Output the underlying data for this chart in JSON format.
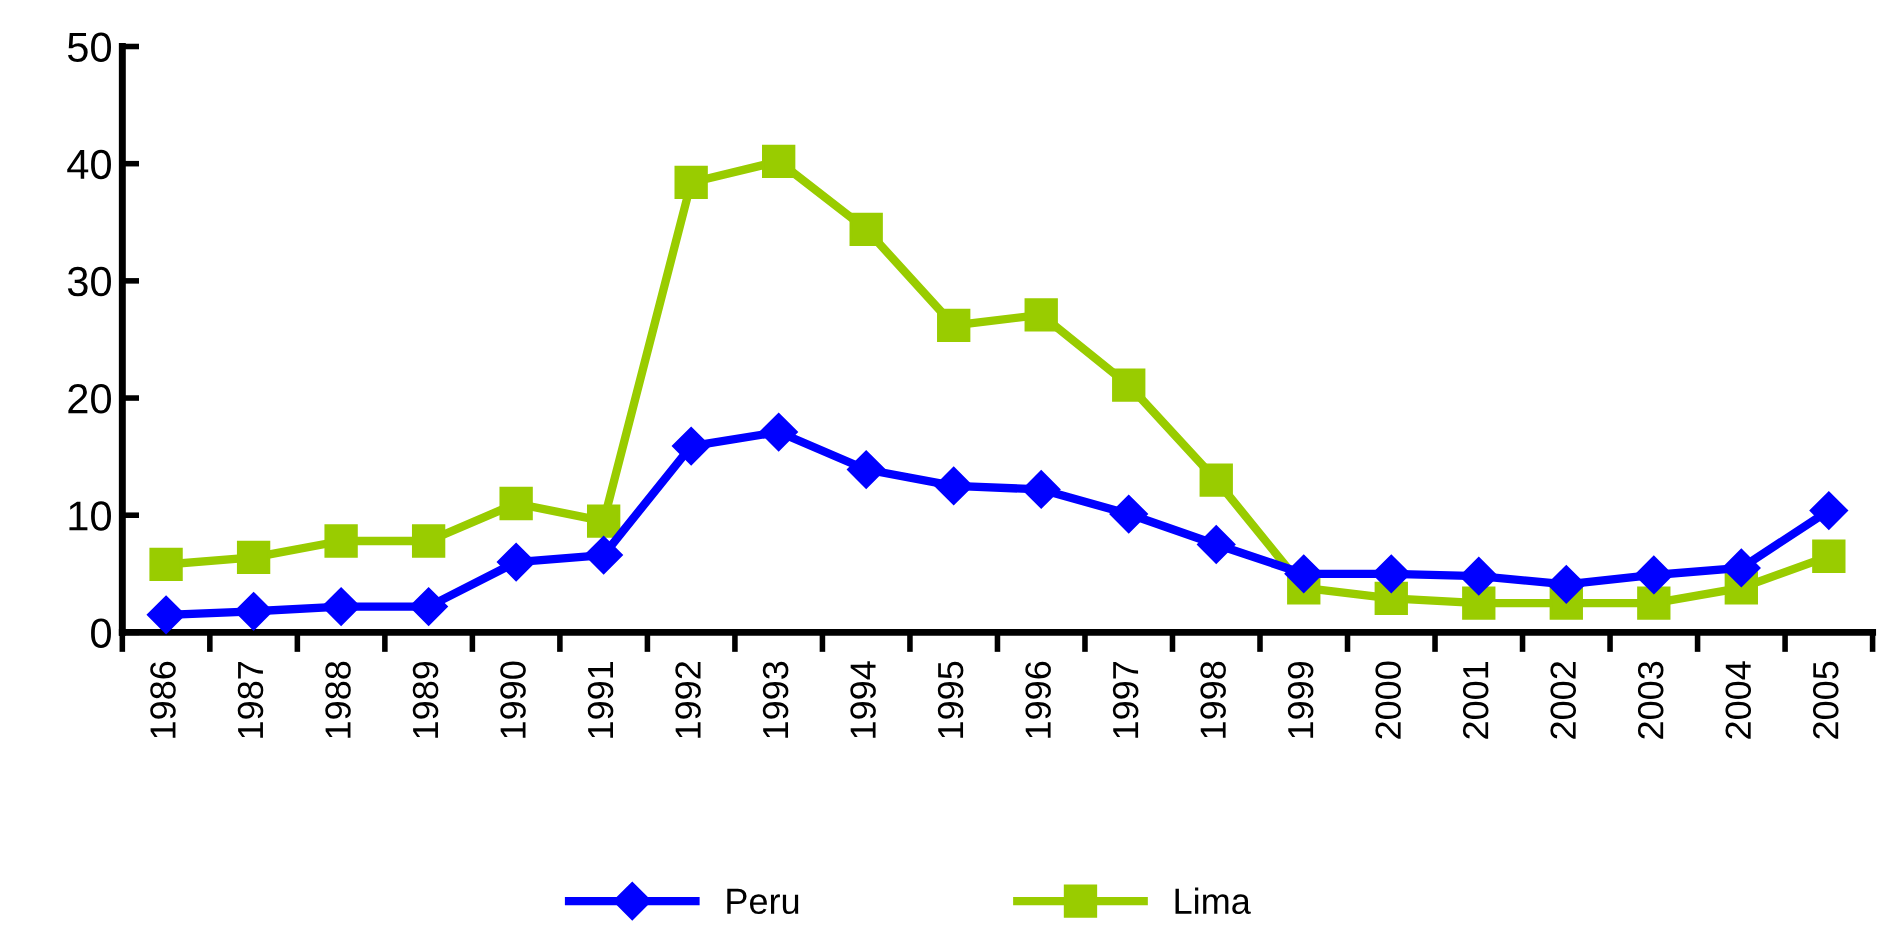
{
  "chart_data": {
    "type": "line",
    "categories": [
      "1986",
      "1987",
      "1988",
      "1989",
      "1990",
      "1991",
      "1992",
      "1993",
      "1994",
      "1995",
      "1996",
      "1997",
      "1998",
      "1999",
      "2000",
      "2001",
      "2002",
      "2003",
      "2004",
      "2005"
    ],
    "series": [
      {
        "name": "Peru",
        "color": "#0000ff",
        "marker": "diamond",
        "values": [
          1.5,
          1.8,
          2.2,
          2.2,
          6.0,
          6.6,
          15.9,
          17.1,
          13.9,
          12.5,
          12.2,
          10.1,
          7.5,
          5.0,
          5.0,
          4.8,
          4.1,
          4.9,
          5.5,
          10.4
        ]
      },
      {
        "name": "Lima",
        "color": "#99cc00",
        "marker": "square",
        "values": [
          5.8,
          6.4,
          7.8,
          7.8,
          11.0,
          9.5,
          38.4,
          40.2,
          34.4,
          26.2,
          27.1,
          21.1,
          13.0,
          3.8,
          2.9,
          2.5,
          2.5,
          2.5,
          3.8,
          6.5
        ]
      }
    ],
    "ylim": [
      0,
      50
    ],
    "yticks": [
      0,
      10,
      20,
      30,
      40,
      50
    ],
    "grid": false,
    "legend": "bottom",
    "line_style": "solid"
  }
}
